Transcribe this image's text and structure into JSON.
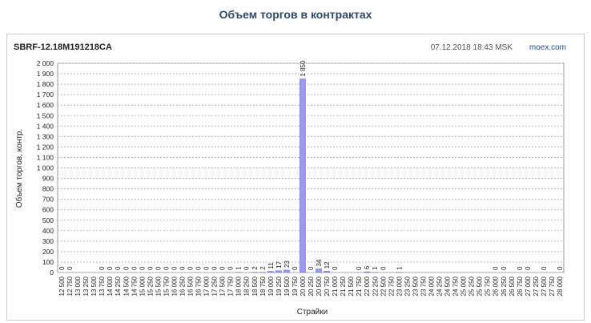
{
  "page_title": "Объем торгов в контрактах",
  "chart_data": {
    "type": "bar",
    "title": "SBRF-12.18M191218CA",
    "timestamp": "07.12.2018 18:43 MSK",
    "source": "moex.com",
    "x_label": "Страйки",
    "y_label": "Объем торгов, контр.",
    "color": "#9a9af5",
    "grid": true,
    "categories": [
      "12 500",
      "12 750",
      "13 000",
      "13 250",
      "13 500",
      "13 750",
      "14 000",
      "14 250",
      "14 500",
      "14 750",
      "15 000",
      "15 250",
      "15 500",
      "15 750",
      "16 000",
      "16 250",
      "16 500",
      "16 750",
      "17 000",
      "17 250",
      "17 500",
      "17 750",
      "18 000",
      "18 250",
      "18 500",
      "18 750",
      "19 000",
      "19 250",
      "19 500",
      "19 750",
      "20 000",
      "20 250",
      "20 500",
      "20 750",
      "21 000",
      "21 250",
      "21 500",
      "21 750",
      "22 000",
      "22 250",
      "22 500",
      "22 750",
      "23 000",
      "23 250",
      "23 500",
      "23 750",
      "24 000",
      "24 250",
      "24 500",
      "24 750",
      "25 000",
      "25 250",
      "25 500",
      "25 750",
      "26 000",
      "26 250",
      "26 500",
      "26 750",
      "27 000",
      "27 250",
      "27 500",
      "27 750",
      "28 000"
    ],
    "values": [
      0,
      0,
      null,
      null,
      null,
      0,
      0,
      0,
      0,
      0,
      0,
      0,
      0,
      0,
      0,
      0,
      0,
      0,
      0,
      0,
      0,
      0,
      1,
      0,
      2,
      2,
      11,
      17,
      23,
      0,
      1850,
      0,
      34,
      12,
      0,
      null,
      null,
      0,
      6,
      1,
      0,
      null,
      1,
      null,
      null,
      null,
      null,
      null,
      null,
      null,
      null,
      null,
      null,
      null,
      0,
      0,
      null,
      0,
      0,
      null,
      0,
      null,
      0
    ],
    "value_labels": [
      "0",
      "0",
      null,
      null,
      null,
      "0",
      "0",
      "0",
      "0",
      "0",
      "0",
      "0",
      "0",
      "0",
      "0",
      "0",
      "0",
      "0",
      "0",
      "0",
      "0",
      "0",
      "1",
      "0",
      "2",
      "2",
      "11",
      "17",
      "23",
      "0",
      "1 850",
      "0",
      "34",
      "12",
      "0",
      null,
      null,
      "0",
      "6",
      "1",
      "0",
      null,
      "1",
      null,
      null,
      null,
      null,
      null,
      null,
      null,
      null,
      null,
      null,
      null,
      "0",
      "0",
      null,
      "0",
      "0",
      null,
      "0",
      null,
      "0"
    ],
    "ylim": [
      0,
      2000
    ],
    "yticks": [
      0,
      100,
      200,
      300,
      400,
      500,
      600,
      700,
      800,
      900,
      {
        "value": 1000,
        "label": "1 000"
      },
      {
        "value": 1100,
        "label": "1 100"
      },
      {
        "value": 1200,
        "label": "1 200"
      },
      {
        "value": 1300,
        "label": "1 300"
      },
      {
        "value": 1400,
        "label": "1 400"
      },
      {
        "value": 1500,
        "label": "1 500"
      },
      {
        "value": 1600,
        "label": "1 600"
      },
      {
        "value": 1700,
        "label": "1 700"
      },
      {
        "value": 1800,
        "label": "1 800"
      },
      {
        "value": 1900,
        "label": "1 900"
      },
      {
        "value": 2000,
        "label": "2 000"
      }
    ]
  }
}
